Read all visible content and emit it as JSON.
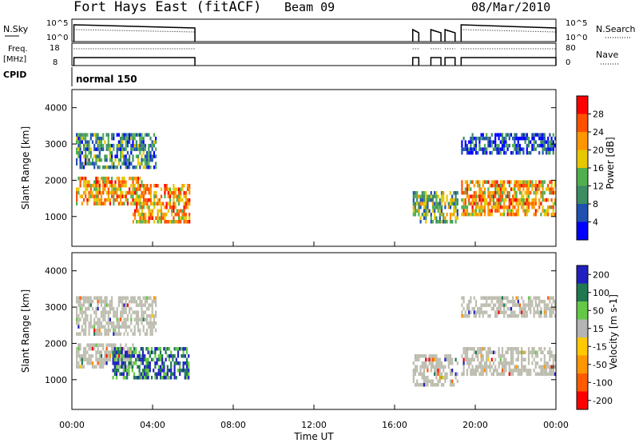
{
  "header": {
    "station": "Fort Hays East (fitACF)",
    "beam": "Beam 09",
    "date": "08/Mar/2010"
  },
  "top_panels": {
    "nsky": {
      "label": "N.Sky",
      "right_label": "N.Search",
      "left_ticks": [
        "10^5",
        "10^0"
      ],
      "right_ticks": [
        "10^5",
        "10^0"
      ]
    },
    "freq": {
      "label_line1": "Freq.",
      "label_line2": "[MHz]",
      "right_label": "Nave",
      "left_ticks": [
        "18",
        "8"
      ],
      "right_ticks": [
        "80",
        "0"
      ]
    },
    "cpid": {
      "label": "CPID",
      "value": "normal 150"
    }
  },
  "chart_data": [
    {
      "type": "heatmap",
      "name": "power",
      "xlabel": "",
      "ylabel": "Slant Range [km]",
      "x_range": [
        "00:00",
        "24:00"
      ],
      "y_range": [
        180,
        4500
      ],
      "yticks": [
        "1000",
        "2000",
        "3000",
        "4000"
      ],
      "colorbar": {
        "label": "Power [dB]",
        "ticks": [
          "4",
          "8",
          "12",
          "16",
          "20",
          "24",
          "28"
        ],
        "range": [
          0,
          30
        ]
      },
      "regions": [
        {
          "t": [
            0.2,
            4.2
          ],
          "r": [
            2400,
            3300
          ],
          "level": "mixed"
        },
        {
          "t": [
            0.2,
            3.5
          ],
          "r": [
            1400,
            2100
          ],
          "level": "high"
        },
        {
          "t": [
            3.0,
            5.8
          ],
          "r": [
            900,
            1900
          ],
          "level": "high"
        },
        {
          "t": [
            16.9,
            19.1
          ],
          "r": [
            900,
            1700
          ],
          "level": "mid"
        },
        {
          "t": [
            19.3,
            24.0
          ],
          "r": [
            1100,
            2000
          ],
          "level": "high"
        },
        {
          "t": [
            19.3,
            24.0
          ],
          "r": [
            2800,
            3300
          ],
          "level": "low"
        }
      ]
    },
    {
      "type": "heatmap",
      "name": "velocity",
      "xlabel": "Time UT",
      "ylabel": "Slant Range [km]",
      "x_range": [
        "00:00",
        "24:00"
      ],
      "y_range": [
        180,
        4500
      ],
      "yticks": [
        "1000",
        "2000",
        "3000",
        "4000"
      ],
      "xticks": [
        "00:00",
        "04:00",
        "08:00",
        "12:00",
        "16:00",
        "20:00",
        "00:00"
      ],
      "colorbar": {
        "label": "Velocity [m s-1]",
        "ticks": [
          "200",
          "100",
          "50",
          "15",
          "-15",
          "-50",
          "-100",
          "-200"
        ],
        "range": [
          -250,
          250
        ]
      },
      "regions": [
        {
          "t": [
            0.2,
            4.2
          ],
          "r": [
            2300,
            3300
          ],
          "level": "ground"
        },
        {
          "t": [
            0.2,
            3.0
          ],
          "r": [
            1400,
            2000
          ],
          "level": "ground"
        },
        {
          "t": [
            2.0,
            5.8
          ],
          "r": [
            1100,
            1900
          ],
          "level": "positive"
        },
        {
          "t": [
            16.9,
            19.1
          ],
          "r": [
            900,
            1700
          ],
          "level": "ground"
        },
        {
          "t": [
            19.3,
            24.0
          ],
          "r": [
            1200,
            1900
          ],
          "level": "ground"
        },
        {
          "t": [
            19.3,
            24.0
          ],
          "r": [
            2800,
            3300
          ],
          "level": "ground"
        }
      ]
    }
  ],
  "colors": {
    "power_scale": [
      "#0000ff",
      "#2050b0",
      "#3c8c64",
      "#50b050",
      "#e6c800",
      "#ff9600",
      "#ff5000",
      "#ff0000"
    ],
    "velocity_scale": [
      "#2020c0",
      "#1e7850",
      "#64c846",
      "#b4b4b4",
      "#ffc800",
      "#ff9600",
      "#ff5a00",
      "#ff0000"
    ],
    "ground_scatter": "#bdbdb0"
  }
}
